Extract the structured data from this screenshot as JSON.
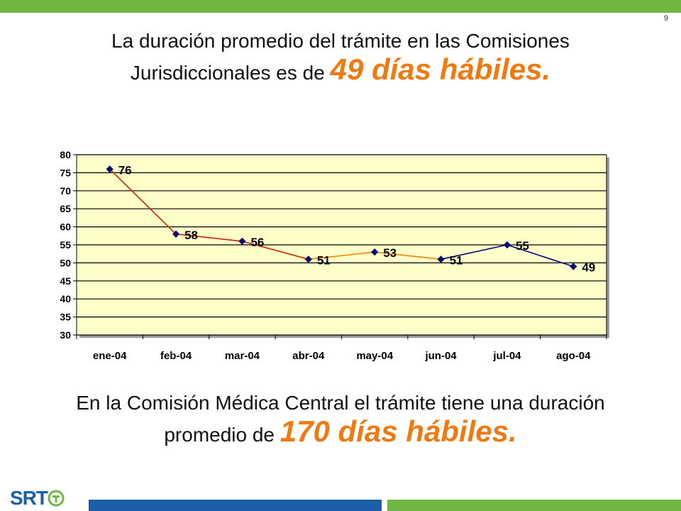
{
  "slide": {
    "page_number": "9",
    "heading_top": {
      "text": "La duración promedio del trámite en las Comisiones Jurisdiccionales es de ",
      "highlight": "49 días hábiles."
    },
    "heading_bottom": {
      "text": "En la Comisión Médica Central el trámite tiene una duración promedio de ",
      "highlight": "170 días hábiles."
    },
    "logo_text": "SRT",
    "colors": {
      "accent_orange": "#f07a12",
      "brand_green": "#6fb643",
      "brand_blue": "#1c5fa8",
      "plot_bg": "#ffffc9",
      "line_red": "#cc2200",
      "line_orange": "#ff8000",
      "line_blue": "#000080"
    }
  },
  "chart_data": {
    "type": "line",
    "categories": [
      "ene-04",
      "feb-04",
      "mar-04",
      "abr-04",
      "may-04",
      "jun-04",
      "jul-04",
      "ago-04"
    ],
    "values": [
      76,
      58,
      56,
      51,
      53,
      51,
      55,
      49
    ],
    "data_labels": [
      "76",
      "58",
      "56",
      "51",
      "53",
      "51",
      "55",
      "49"
    ],
    "ylim": [
      30,
      80
    ],
    "yticks": [
      30,
      35,
      40,
      45,
      50,
      55,
      60,
      65,
      70,
      75,
      80
    ],
    "ytick_labels": [
      "30",
      "35",
      "40",
      "45",
      "50",
      "55",
      "60",
      "65",
      "70",
      "75",
      "80"
    ],
    "grid": true,
    "legend": false
  }
}
